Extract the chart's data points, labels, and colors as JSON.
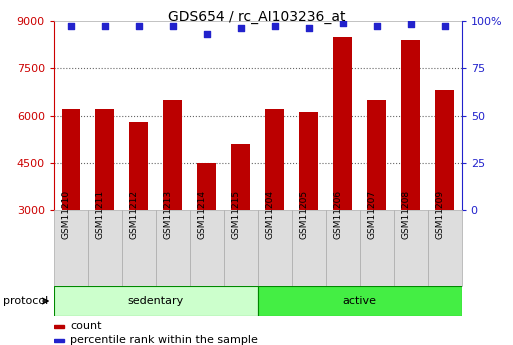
{
  "title": "GDS654 / rc_AI103236_at",
  "samples": [
    "GSM11210",
    "GSM11211",
    "GSM11212",
    "GSM11213",
    "GSM11214",
    "GSM11215",
    "GSM11204",
    "GSM11205",
    "GSM11206",
    "GSM11207",
    "GSM11208",
    "GSM11209"
  ],
  "counts": [
    6200,
    6200,
    5800,
    6500,
    4500,
    5100,
    6200,
    6100,
    8500,
    6500,
    8400,
    6800
  ],
  "percentile_ranks": [
    97,
    97,
    97,
    97,
    93,
    96,
    97,
    96,
    99,
    97,
    98,
    97
  ],
  "bar_color": "#bb0000",
  "dot_color": "#2222cc",
  "ylim_left": [
    3000,
    9000
  ],
  "ylim_right": [
    0,
    100
  ],
  "yticks_left": [
    3000,
    4500,
    6000,
    7500,
    9000
  ],
  "yticks_right": [
    0,
    25,
    50,
    75,
    100
  ],
  "sedentary_color": "#ccffcc",
  "active_color": "#44ee44",
  "groups": [
    {
      "label": "sedentary",
      "start": 0,
      "end": 6
    },
    {
      "label": "active",
      "start": 6,
      "end": 12
    }
  ],
  "protocol_label": "protocol",
  "legend_count_label": "count",
  "legend_pct_label": "percentile rank within the sample",
  "grid_color": "#666666",
  "sample_bg": "#dddddd",
  "sample_border": "#aaaaaa"
}
